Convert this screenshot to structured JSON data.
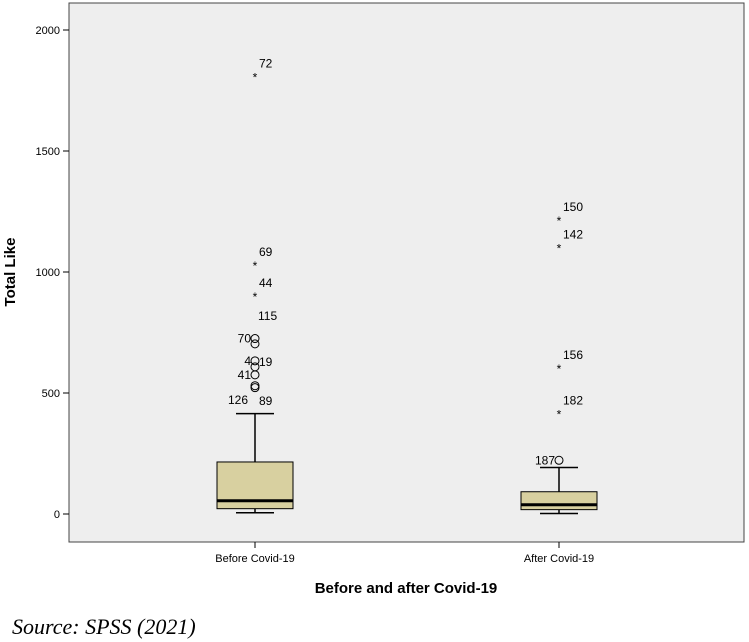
{
  "chart_data": {
    "type": "box",
    "xlabel": "Before and after Covid-19",
    "ylabel": "Total Like",
    "ylim": [
      -100,
      2100
    ],
    "yticks": [
      0,
      500,
      1000,
      1500,
      2000
    ],
    "grid": false,
    "plot_background": "#eeeeee",
    "box_fill": "#d8d0a0",
    "groups": [
      {
        "name": "Before Covid-19",
        "whisker_low": 5,
        "q1": 22,
        "median": 55,
        "q3": 215,
        "whisker_high": 415,
        "outliers": [
          {
            "value": 522,
            "label": "",
            "marker": "circle"
          },
          {
            "value": 530,
            "label": "",
            "marker": "circle"
          },
          {
            "value": 575,
            "label": "41",
            "marker": "circle"
          },
          {
            "value": 608,
            "label": "",
            "marker": "circle"
          },
          {
            "value": 633,
            "label": "4",
            "marker": "circle"
          },
          {
            "value": 703,
            "label": "",
            "marker": "circle"
          },
          {
            "value": 725,
            "label": "70",
            "marker": "circle"
          }
        ],
        "extremes": [
          {
            "value": 905,
            "label": "44",
            "marker": "star"
          },
          {
            "value": 1033,
            "label": "69",
            "marker": "star"
          },
          {
            "value": 1812,
            "label": "72",
            "marker": "star"
          }
        ],
        "extra_labels": [
          "126",
          "89",
          "115",
          "19"
        ]
      },
      {
        "name": "After Covid-19",
        "whisker_low": 2,
        "q1": 18,
        "median": 38,
        "q3": 92,
        "whisker_high": 192,
        "outliers": [
          {
            "value": 222,
            "label": "187",
            "marker": "circle"
          }
        ],
        "extremes": [
          {
            "value": 420,
            "label": "182",
            "marker": "star"
          },
          {
            "value": 608,
            "label": "156",
            "marker": "star"
          },
          {
            "value": 1105,
            "label": "142",
            "marker": "star"
          },
          {
            "value": 1220,
            "label": "150",
            "marker": "star"
          }
        ],
        "extra_labels": []
      }
    ]
  },
  "source_text": "Source: SPSS (2021)"
}
